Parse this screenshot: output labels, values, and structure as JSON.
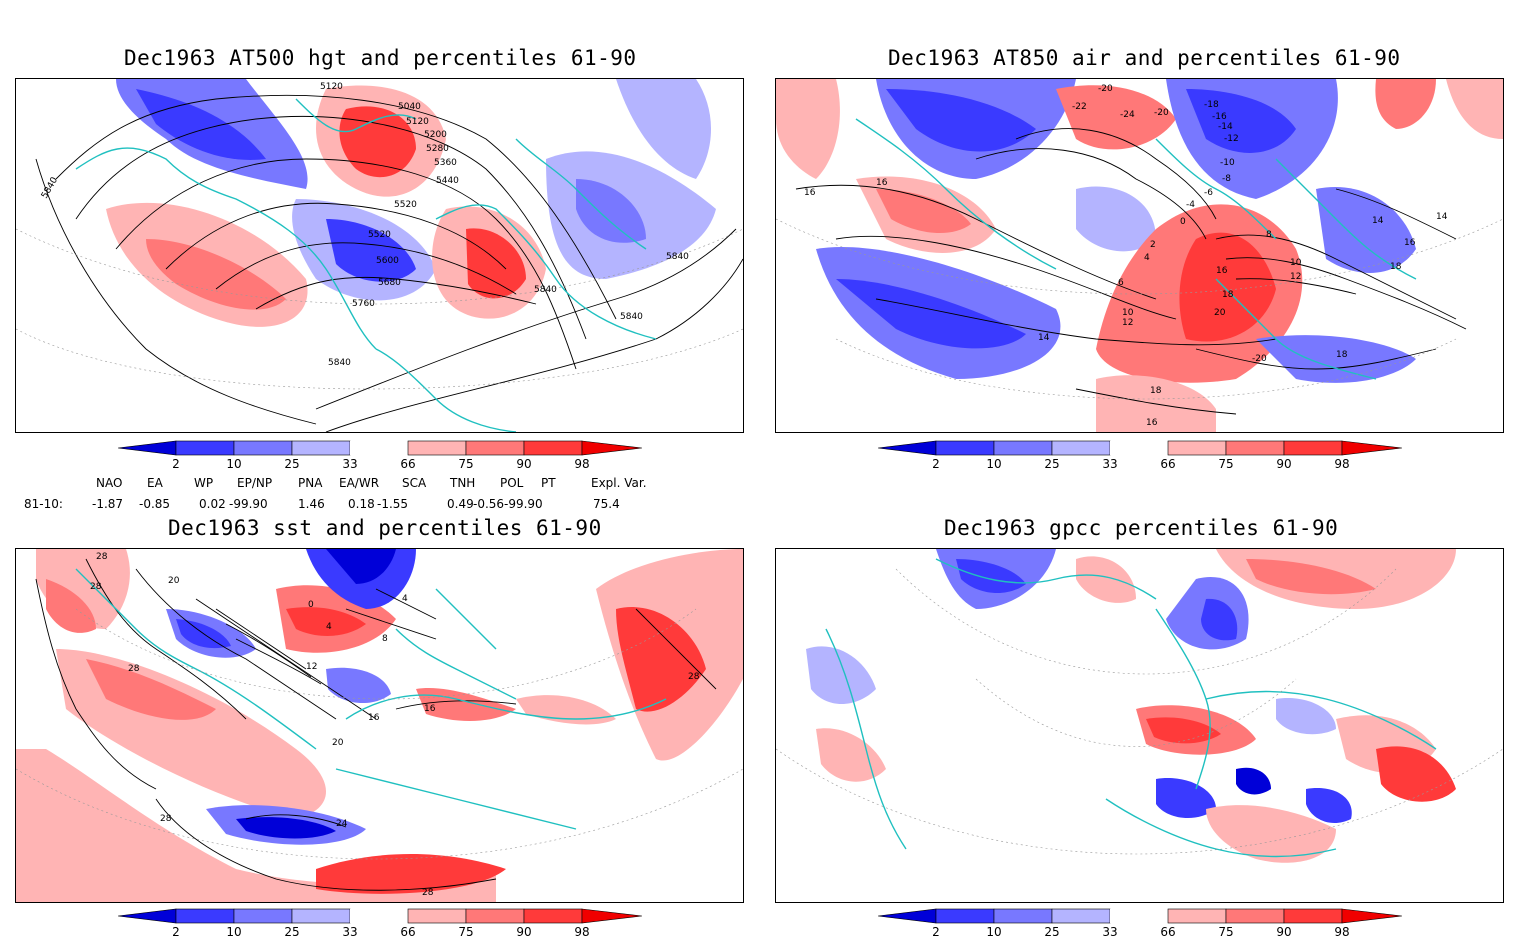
{
  "panels": [
    {
      "id": "hgt500",
      "title": "Dec1963 AT500 hgt and percentiles 61-90",
      "contour_labels": [
        "5120",
        "5040",
        "5120",
        "5200",
        "5280",
        "5360",
        "5440",
        "5520",
        "5520",
        "5600",
        "5680",
        "5760",
        "5840",
        "5840",
        "5840",
        "5840",
        "5840"
      ]
    },
    {
      "id": "air850",
      "title": "Dec1963 AT850 air and percentiles 61-90",
      "contour_labels": [
        "-20",
        "-22",
        "-24",
        "-20",
        "-18",
        "-16",
        "-14",
        "-12",
        "-10",
        "-8",
        "-6",
        "-4",
        "0",
        "2",
        "4",
        "6",
        "8",
        "10",
        "12",
        "14",
        "16",
        "18",
        "20",
        "-20",
        "18",
        "16",
        "16",
        "16",
        "14",
        "16",
        "18",
        "18",
        "14",
        "10",
        "12"
      ]
    },
    {
      "id": "sst",
      "title": "Dec1963 sst and percentiles 61-90",
      "contour_labels": [
        "28",
        "28",
        "20",
        "28",
        "12",
        "16",
        "20",
        "24",
        "28",
        "28",
        "28",
        "0",
        "4",
        "8",
        "16",
        "4"
      ]
    },
    {
      "id": "gpcc",
      "title": "Dec1963 gpcc percentiles 61-90",
      "contour_labels": []
    }
  ],
  "colorbar": {
    "ticks": [
      "2",
      "10",
      "25",
      "33",
      "66",
      "75",
      "90",
      "98"
    ],
    "colors": {
      "lt2": "#0000d8",
      "c2_10": "#3a3aff",
      "c10_25": "#7878ff",
      "c25_33": "#b4b4ff",
      "c33_66": "#ffffff",
      "c66_75": "#ffb4b4",
      "c75_90": "#ff7878",
      "c90_98": "#ff3a3a",
      "gt98": "#f00000"
    }
  },
  "indices": {
    "headers": [
      "NAO",
      "EA",
      "WP",
      "EP/NP",
      "PNA",
      "EA/WR",
      "SCA",
      "TNH",
      "POL",
      "PT",
      "Expl. Var."
    ],
    "row_label": "81-10:",
    "values": [
      "-1.87",
      "-0.85",
      "0.02",
      "-99.90",
      "1.46",
      "0.18",
      "-1.55",
      "0.49",
      "-0.56",
      "-99.90",
      "75.4"
    ]
  },
  "map_colors": {
    "coast": "#20c0c0",
    "contour": "#000000",
    "grid": "#999999"
  }
}
